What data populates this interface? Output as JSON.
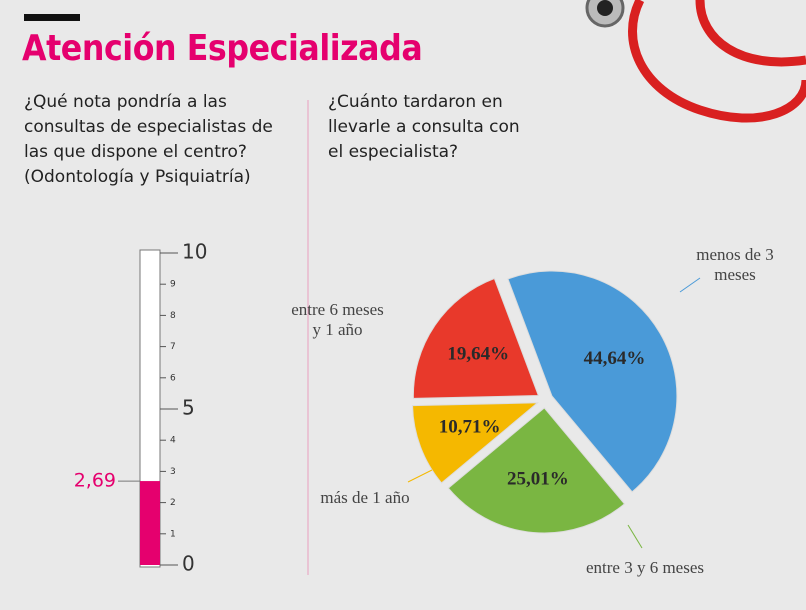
{
  "title": "Atención Especializada",
  "chart_data": [
    {
      "type": "thermometer",
      "title": "¿Qué nota pondría a las consultas de especialistas de las que dispone el centro? (Odontología y Psiquiatría)",
      "values": [
        2.69
      ],
      "value_labels": [
        "2,69"
      ],
      "color": "#e5006e",
      "ylim": [
        0,
        10
      ],
      "yticks": [
        0,
        1,
        2,
        3,
        4,
        5,
        6,
        7,
        8,
        9,
        10
      ]
    },
    {
      "type": "pie",
      "title": "¿Cuánto tardaron en llevarle a consulta con el especialista?",
      "categories": [
        "menos de 3 meses",
        "entre 3 y 6 meses",
        "más de 1 año",
        "entre 6 meses y 1 año"
      ],
      "values": [
        44.64,
        25.01,
        10.71,
        19.64
      ],
      "value_labels": [
        "44,64%",
        "25,01%",
        "10,71%",
        "19,64%"
      ],
      "colors": [
        "#4a9ad8",
        "#7ab642",
        "#f5b800",
        "#e8392b"
      ]
    }
  ]
}
